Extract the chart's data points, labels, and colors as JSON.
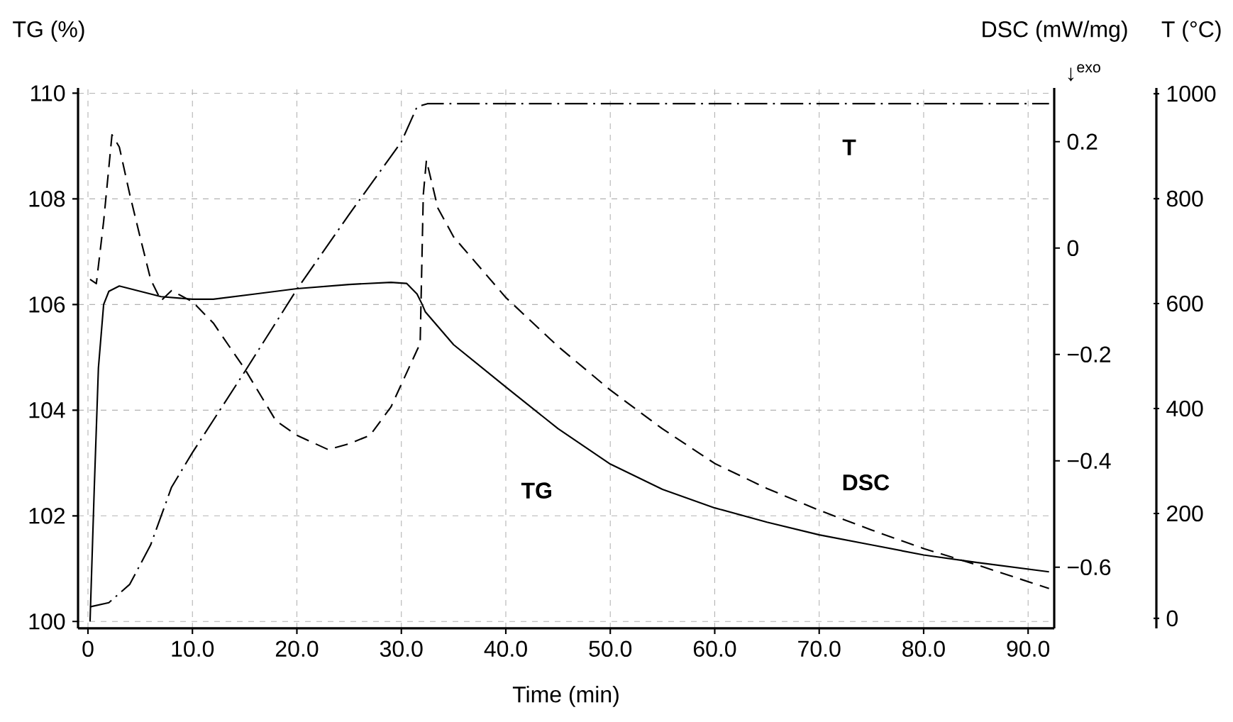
{
  "chart_data": {
    "type": "line",
    "xlabel": "Time (min)",
    "ylabel": "TG (%)",
    "y2label": "DSC (mW/mg)",
    "y3label": "T (°C)",
    "annotations": [
      "↓$^{exo}$"
    ],
    "xlim": [
      -0.95,
      92.5
    ],
    "xticks": [
      0,
      {
        "value": 10,
        "label": "10.0"
      },
      {
        "value": 20,
        "label": "20.0"
      },
      {
        "value": 30,
        "label": "30.0"
      },
      {
        "value": 40,
        "label": "40.0"
      },
      {
        "value": 50,
        "label": "50.0"
      },
      {
        "value": 60,
        "label": "60.0"
      },
      {
        "value": 70,
        "label": "70.0"
      },
      {
        "value": 80,
        "label": "80.0"
      },
      {
        "value": 90,
        "label": "90.0"
      }
    ],
    "ylim": [
      99.87,
      110.1
    ],
    "yticks": [
      100,
      102,
      104,
      106,
      108,
      110
    ],
    "y2lim": [
      -0.715,
      0.301
    ],
    "y2ticks": [
      {
        "value": -0.6,
        "label": "−0.6"
      },
      {
        "value": -0.4,
        "label": "−0.4"
      },
      {
        "value": -0.2,
        "label": "−0.2"
      },
      0,
      0.2
    ],
    "y3lim": [
      -19,
      1011
    ],
    "y3ticks": [
      0,
      200,
      400,
      600,
      800,
      1000
    ],
    "grid": true,
    "series": [
      {
        "name": "TG",
        "color": "#000000",
        "line_style": "solid",
        "x": [
          0.2,
          0.6,
          1.0,
          1.5,
          2.0,
          3.0,
          5.0,
          7.0,
          10.0,
          12.0,
          16.0,
          20.0,
          25.0,
          29.0,
          30.5,
          31.5,
          32.0,
          32.3,
          35.0,
          40.0,
          45.0,
          50.0,
          55.0,
          60.0,
          65.0,
          70.0,
          75.0,
          80.0,
          85.0,
          92.0
        ],
        "values": [
          100.0,
          102.5,
          104.8,
          106.0,
          106.25,
          106.35,
          106.25,
          106.15,
          106.1,
          106.1,
          106.2,
          106.3,
          106.38,
          106.42,
          106.4,
          106.2,
          106.0,
          105.86,
          105.24,
          104.44,
          103.65,
          102.98,
          102.5,
          102.15,
          101.88,
          101.64,
          101.45,
          101.26,
          101.12,
          100.94
        ]
      },
      {
        "name": "DSC",
        "color": "#000000",
        "line_style": "dashed",
        "axis": "y2",
        "x": [
          0.2,
          0.8,
          1.5,
          2.3,
          3.0,
          4.0,
          5.0,
          6.0,
          7.0,
          8.0,
          10.0,
          12.0,
          15.0,
          18.0,
          20.0,
          23.0,
          25.0,
          27.0,
          29.0,
          31.5,
          31.8,
          32.1,
          32.4,
          33.5,
          35.0,
          40.0,
          45.0,
          50.0,
          55.0,
          60.0,
          65.0,
          70.0,
          75.0,
          80.0,
          85.0,
          92.0
        ],
        "values": [
          -0.059,
          -0.067,
          0.05,
          0.213,
          0.19,
          0.101,
          0.02,
          -0.059,
          -0.099,
          -0.08,
          -0.101,
          -0.141,
          -0.227,
          -0.325,
          -0.352,
          -0.379,
          -0.368,
          -0.352,
          -0.299,
          -0.192,
          -0.18,
          0.1,
          0.165,
          0.075,
          0.021,
          -0.093,
          -0.185,
          -0.267,
          -0.34,
          -0.405,
          -0.452,
          -0.493,
          -0.53,
          -0.565,
          -0.595,
          -0.64
        ]
      },
      {
        "name": "T",
        "color": "#000000",
        "line_style": "dashdot",
        "axis": "y3",
        "x": [
          0.2,
          2.0,
          4.0,
          6.0,
          8.0,
          10.0,
          15.0,
          20.0,
          25.0,
          30.0,
          31.5,
          32.5,
          92.0
        ],
        "values": [
          22,
          30,
          65,
          140,
          250,
          316,
          470,
          627,
          770,
          908,
          975,
          981,
          981
        ]
      }
    ]
  }
}
